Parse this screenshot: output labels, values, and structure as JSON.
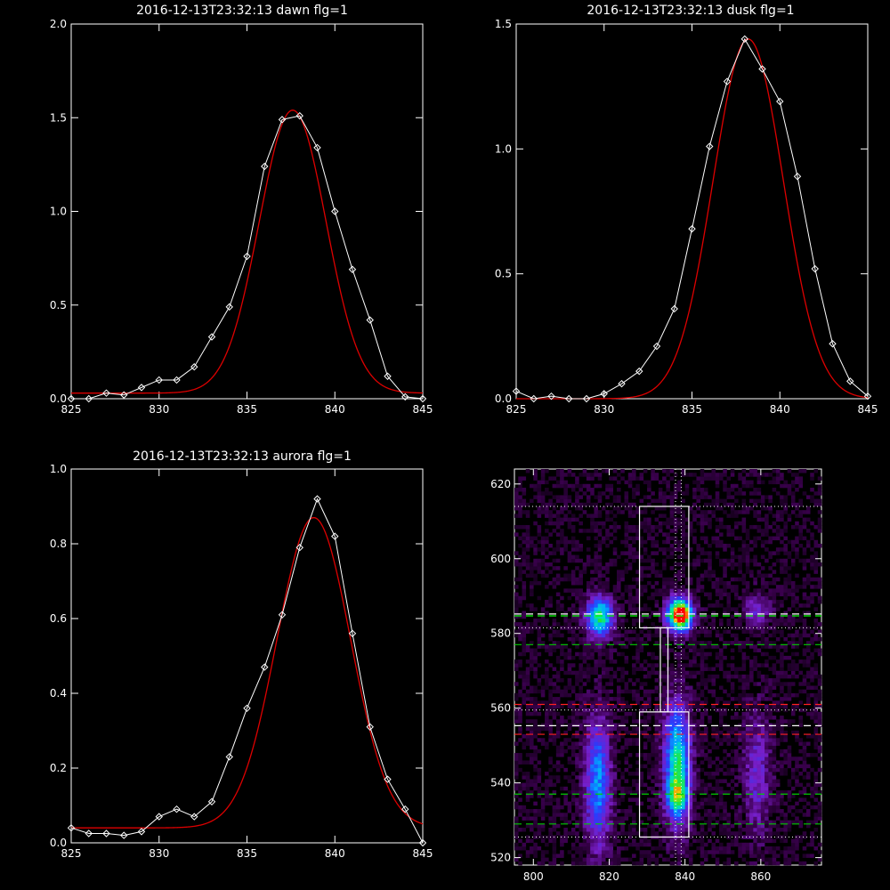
{
  "colors": {
    "background": "#000000",
    "axes": "#ffffff",
    "fit": "#dd0000",
    "observed": "#ffffff"
  },
  "chart_data": [
    {
      "type": "line",
      "panel": "top-left",
      "title": "2016-12-13T23:32:13 dawn flg=1",
      "xlim": [
        825,
        845
      ],
      "ylim": [
        0,
        2.0
      ],
      "xticks": [
        "825",
        "830",
        "835",
        "840",
        "845"
      ],
      "yticks": [
        "0.0",
        "0.5",
        "1.0",
        "1.5",
        "2.0"
      ],
      "xtick_values": [
        825,
        830,
        835,
        840,
        845
      ],
      "ytick_values": [
        0,
        0.5,
        1.0,
        1.5,
        2.0
      ],
      "series": [
        {
          "role": "observed",
          "markers": "diamond",
          "x": [
            825,
            826,
            827,
            828,
            829,
            830,
            831,
            832,
            833,
            834,
            835,
            836,
            837,
            838,
            839,
            840,
            841,
            842,
            843,
            844,
            845
          ],
          "y": [
            0.0,
            0.0,
            0.03,
            0.02,
            0.06,
            0.1,
            0.1,
            0.17,
            0.33,
            0.49,
            0.76,
            1.24,
            1.49,
            1.51,
            1.34,
            1.0,
            0.69,
            0.42,
            0.12,
            0.01,
            0.0
          ]
        },
        {
          "role": "fit",
          "model": "gaussian",
          "center": 837.6,
          "sigma": 1.9,
          "amplitude": 1.51,
          "offset": 0.03
        }
      ]
    },
    {
      "type": "line",
      "panel": "top-right",
      "title": "2016-12-13T23:32:13 dusk flg=1",
      "xlim": [
        825,
        845
      ],
      "ylim": [
        0,
        1.5
      ],
      "xticks": [
        "825",
        "830",
        "835",
        "840",
        "845"
      ],
      "yticks": [
        "0.0",
        "0.5",
        "1.0",
        "1.5"
      ],
      "xtick_values": [
        825,
        830,
        835,
        840,
        845
      ],
      "ytick_values": [
        0,
        0.5,
        1.0,
        1.5
      ],
      "series": [
        {
          "role": "observed",
          "markers": "diamond",
          "x": [
            825,
            826,
            827,
            828,
            829,
            830,
            831,
            832,
            833,
            834,
            835,
            836,
            837,
            838,
            839,
            840,
            841,
            842,
            843,
            844,
            845
          ],
          "y": [
            0.03,
            0.0,
            0.01,
            0.0,
            0.0,
            0.02,
            0.06,
            0.11,
            0.21,
            0.36,
            0.68,
            1.01,
            1.27,
            1.44,
            1.32,
            1.19,
            0.89,
            0.52,
            0.22,
            0.07,
            0.01
          ]
        },
        {
          "role": "fit",
          "model": "gaussian",
          "center": 838.2,
          "sigma": 2.0,
          "amplitude": 1.44,
          "offset": 0.0
        }
      ]
    },
    {
      "type": "line",
      "panel": "bottom-left",
      "title": "2016-12-13T23:32:13 aurora flg=1",
      "xlim": [
        825,
        845
      ],
      "ylim": [
        0,
        1.0
      ],
      "xticks": [
        "825",
        "830",
        "835",
        "840",
        "845"
      ],
      "yticks": [
        "0.0",
        "0.2",
        "0.4",
        "0.6",
        "0.8",
        "1.0"
      ],
      "xtick_values": [
        825,
        830,
        835,
        840,
        845
      ],
      "ytick_values": [
        0,
        0.2,
        0.4,
        0.6,
        0.8,
        1.0
      ],
      "series": [
        {
          "role": "observed",
          "markers": "diamond",
          "x": [
            825,
            826,
            827,
            828,
            829,
            830,
            831,
            832,
            833,
            834,
            835,
            836,
            837,
            838,
            839,
            840,
            841,
            842,
            843,
            844,
            845
          ],
          "y": [
            0.04,
            0.025,
            0.025,
            0.02,
            0.03,
            0.07,
            0.09,
            0.07,
            0.11,
            0.23,
            0.36,
            0.47,
            0.61,
            0.79,
            0.92,
            0.82,
            0.56,
            0.31,
            0.17,
            0.09,
            0.0
          ]
        },
        {
          "role": "fit",
          "model": "gaussian",
          "center": 838.8,
          "sigma": 2.1,
          "amplitude": 0.83,
          "offset": 0.04
        }
      ]
    },
    {
      "type": "heatmap",
      "panel": "bottom-right",
      "title": "",
      "xlim": [
        795,
        876
      ],
      "ylim": [
        518,
        624
      ],
      "xticks": [
        "800",
        "820",
        "840",
        "860"
      ],
      "yticks": [
        "520",
        "540",
        "560",
        "580",
        "600",
        "620"
      ],
      "xtick_values": [
        800,
        820,
        840,
        860
      ],
      "ytick_values": [
        520,
        540,
        560,
        580,
        600,
        620
      ],
      "colormap": "rainbow",
      "blobs": [
        {
          "x": 817.5,
          "y": 584.5,
          "sx": 2.5,
          "sy": 3.8,
          "amp": 0.62
        },
        {
          "x": 838.5,
          "y": 585.0,
          "sx": 2.3,
          "sy": 3.2,
          "amp": 0.9
        },
        {
          "x": 839.5,
          "y": 585.5,
          "sx": 1.2,
          "sy": 1.5,
          "amp": 0.35
        },
        {
          "x": 817.0,
          "y": 540.0,
          "sx": 2.4,
          "sy": 12.0,
          "amp": 0.45
        },
        {
          "x": 838.0,
          "y": 545.0,
          "sx": 2.4,
          "sy": 11.0,
          "amp": 0.62
        },
        {
          "x": 838.0,
          "y": 536.5,
          "sx": 1.8,
          "sy": 3.0,
          "amp": 0.35
        },
        {
          "x": 859.0,
          "y": 586.0,
          "sx": 2.5,
          "sy": 3.5,
          "amp": 0.22
        },
        {
          "x": 859.0,
          "y": 542.0,
          "sx": 2.6,
          "sy": 12.0,
          "amp": 0.22
        }
      ],
      "boxes": [
        {
          "x": [
            828,
            841
          ],
          "y": [
            581.5,
            614
          ]
        },
        {
          "x": [
            828,
            841
          ],
          "y": [
            525.5,
            559
          ]
        }
      ],
      "connector": {
        "x": [
          833.5,
          835.5
        ],
        "y": [
          559,
          581.5
        ]
      },
      "dotted_hlines": [
        614,
        581.5,
        559.5,
        525.5
      ],
      "dotted_vlines": [
        837.5,
        839.0
      ],
      "dashed_hlines": [
        {
          "y": 585.2,
          "color": "#ffffff"
        },
        {
          "y": 584.7,
          "color": "#00ff00"
        },
        {
          "y": 577.0,
          "color": "#00cc00"
        },
        {
          "y": 561.0,
          "color": "#ff2020"
        },
        {
          "y": 555.3,
          "color": "#ffffff"
        },
        {
          "y": 553.0,
          "color": "#ff2020"
        },
        {
          "y": 537.0,
          "color": "#00cc00"
        },
        {
          "y": 529.0,
          "color": "#00cc00"
        }
      ]
    }
  ]
}
